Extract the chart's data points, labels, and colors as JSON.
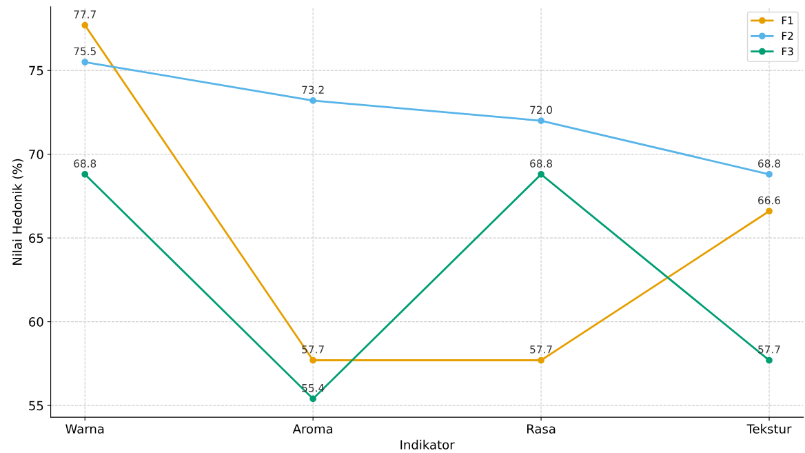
{
  "chart_data": {
    "type": "line",
    "xlabel": "Indikator",
    "ylabel": "Nilai Hedonik (%)",
    "categories": [
      "Warna",
      "Aroma",
      "Rasa",
      "Tekstur"
    ],
    "series": [
      {
        "name": "F1",
        "color": "#e69f00",
        "values": [
          77.7,
          57.7,
          57.7,
          66.6
        ],
        "value_labels": [
          "77.7",
          "57.7",
          "57.7",
          "66.6"
        ]
      },
      {
        "name": "F2",
        "color": "#56b4e9",
        "values": [
          75.5,
          73.2,
          72.0,
          68.8
        ],
        "value_labels": [
          "75.5",
          "73.2",
          "72.0",
          "68.8"
        ]
      },
      {
        "name": "F3",
        "color": "#009e73",
        "values": [
          68.8,
          55.4,
          68.8,
          57.7
        ],
        "value_labels": [
          "68.8",
          "55.4",
          "68.8",
          "57.7"
        ]
      }
    ],
    "ylim": [
      54.3,
      78.8
    ],
    "yticks": [
      55,
      60,
      65,
      70,
      75
    ],
    "grid": true,
    "legend": "top right",
    "marker": "circle",
    "line_style": "solid"
  }
}
